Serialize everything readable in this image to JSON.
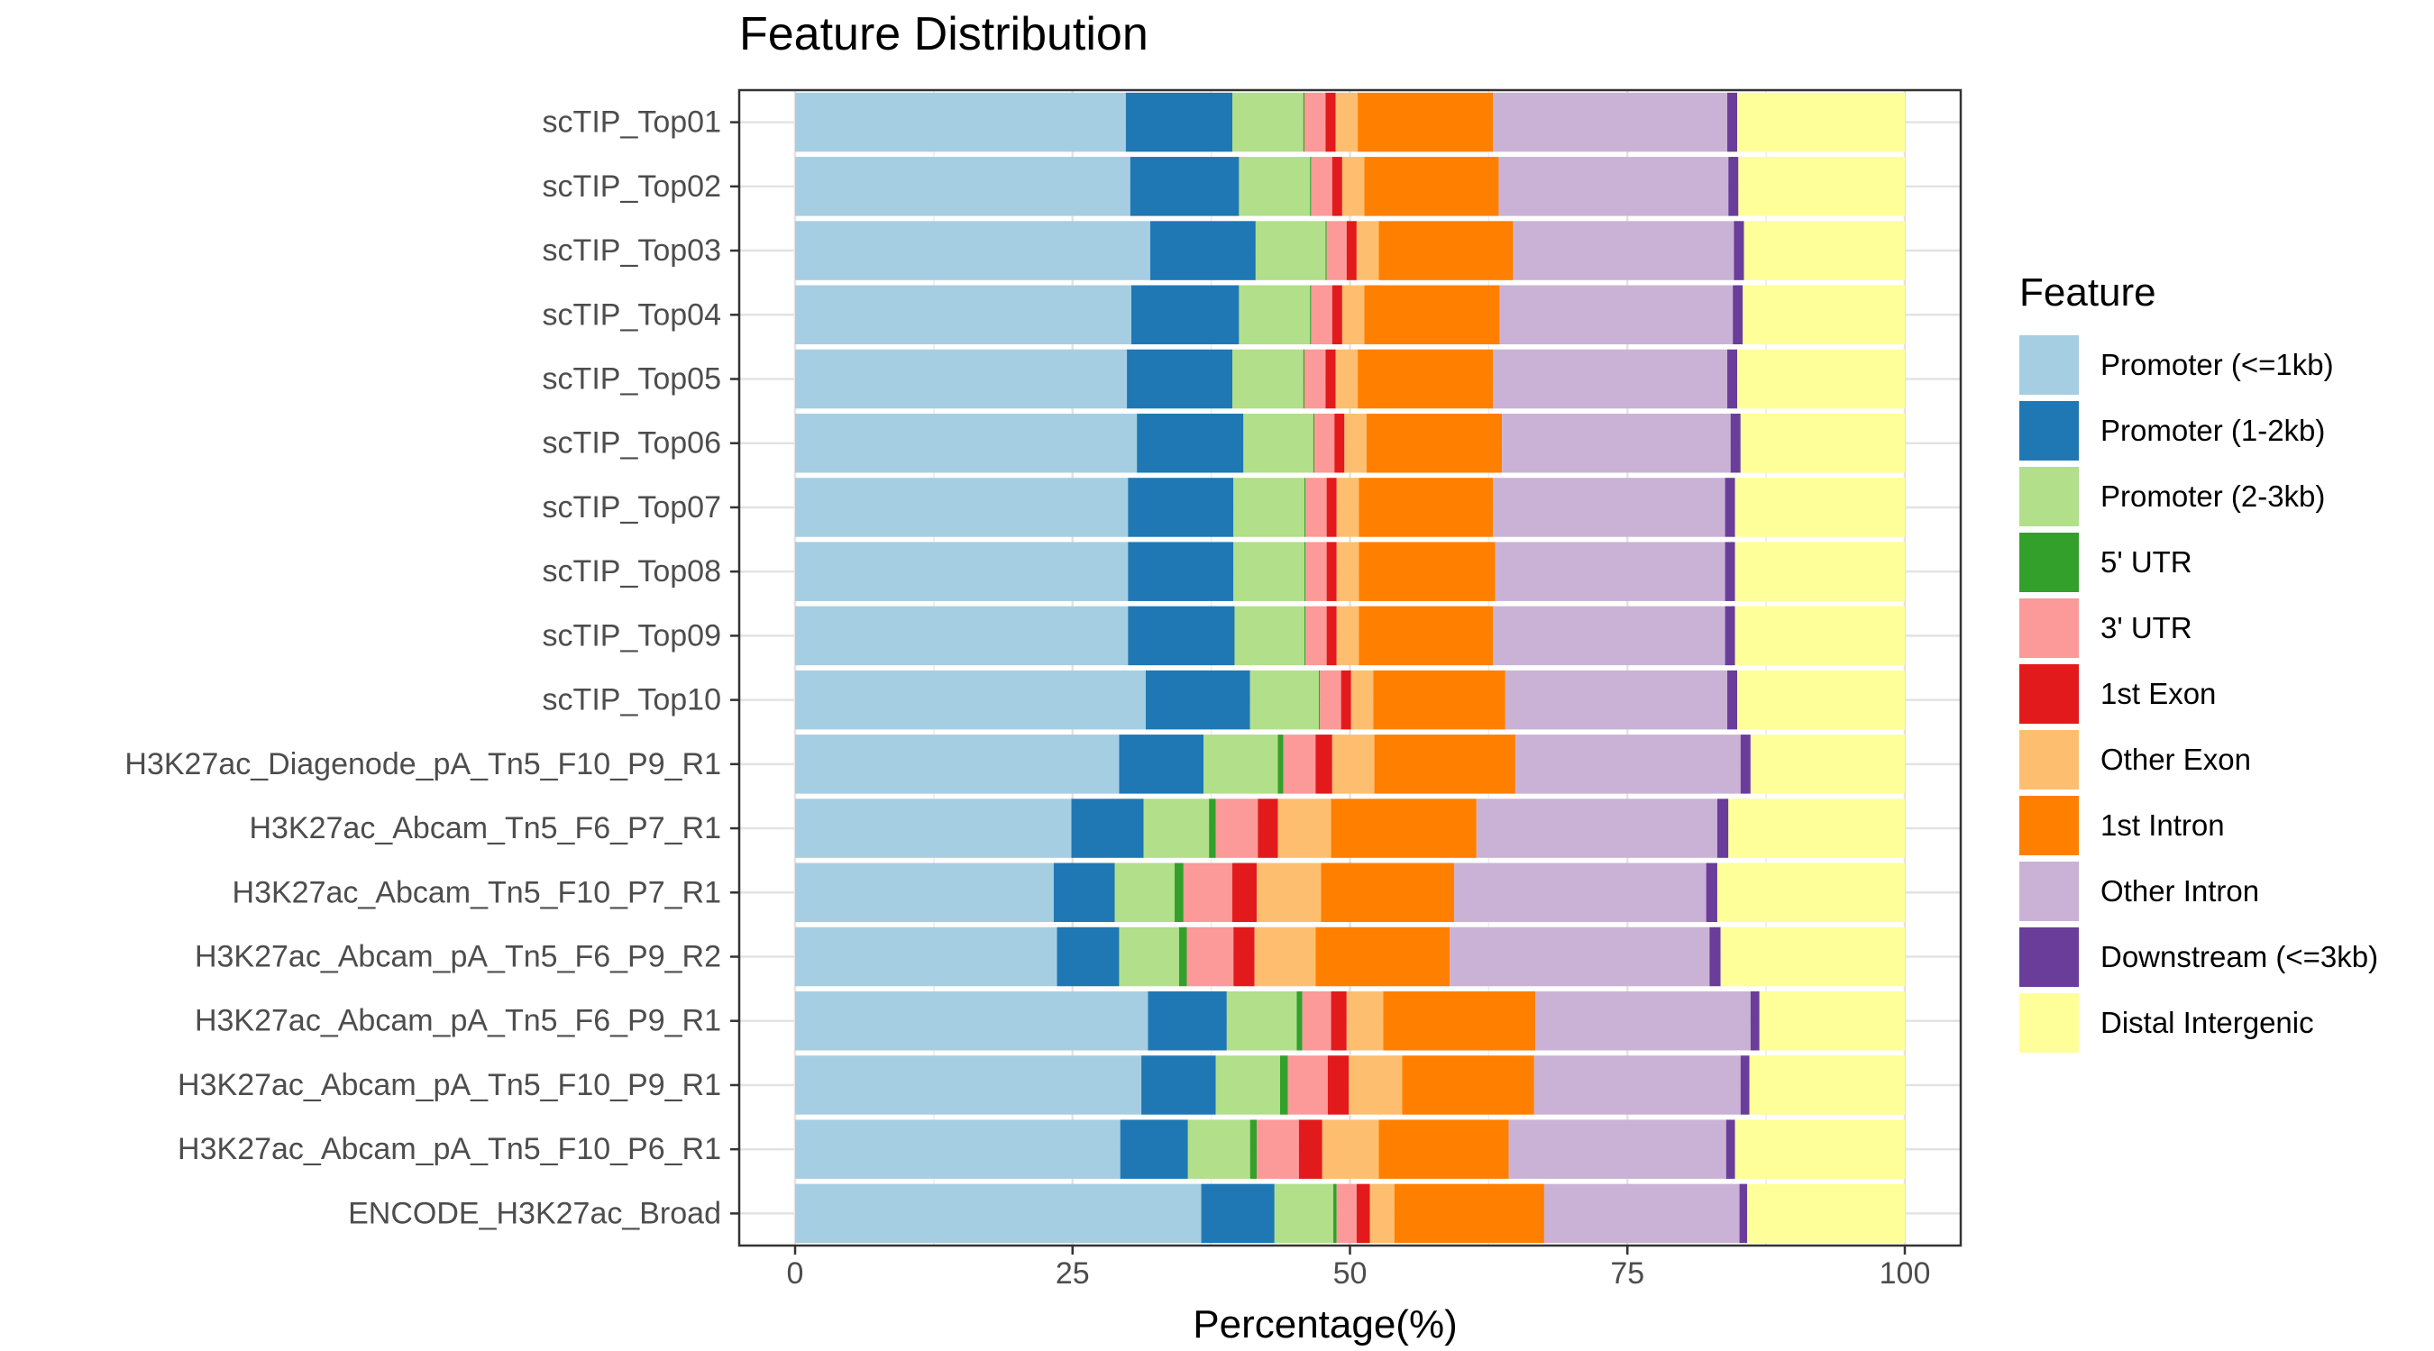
{
  "chart_data": {
    "type": "bar",
    "orientation": "horizontal",
    "stacked": true,
    "title": "Feature Distribution",
    "xlabel": "Percentage(%)",
    "ylabel": "",
    "xlim": [
      0,
      100
    ],
    "xticks": [
      0,
      25,
      50,
      75,
      100
    ],
    "grid": true,
    "legend_title": "Feature",
    "legend_position": "right",
    "categories": [
      "scTIP_Top01",
      "scTIP_Top02",
      "scTIP_Top03",
      "scTIP_Top04",
      "scTIP_Top05",
      "scTIP_Top06",
      "scTIP_Top07",
      "scTIP_Top08",
      "scTIP_Top09",
      "scTIP_Top10",
      "H3K27ac_Diagenode_pA_Tn5_F10_P9_R1",
      "H3K27ac_Abcam_Tn5_F6_P7_R1",
      "H3K27ac_Abcam_Tn5_F10_P7_R1",
      "H3K27ac_Abcam_pA_Tn5_F6_P9_R2",
      "H3K27ac_Abcam_pA_Tn5_F6_P9_R1",
      "H3K27ac_Abcam_pA_Tn5_F10_P9_R1",
      "H3K27ac_Abcam_pA_Tn5_F10_P6_R1",
      "ENCODE_H3K27ac_Broad"
    ],
    "series": [
      {
        "name": "Promoter (<=1kb)",
        "color": "#A6CEE3",
        "values": [
          29.8,
          30.2,
          32.0,
          30.3,
          29.9,
          30.8,
          30.0,
          30.0,
          30.0,
          31.6,
          29.2,
          24.9,
          23.3,
          23.6,
          31.8,
          31.2,
          29.3,
          36.6
        ]
      },
      {
        "name": "Promoter (1-2kb)",
        "color": "#1F78B4",
        "values": [
          9.6,
          9.8,
          9.5,
          9.7,
          9.5,
          9.6,
          9.5,
          9.5,
          9.6,
          9.4,
          7.6,
          6.5,
          5.5,
          5.6,
          7.1,
          6.7,
          6.1,
          6.6
        ]
      },
      {
        "name": "Promoter (2-3kb)",
        "color": "#B2DF8A",
        "values": [
          6.4,
          6.4,
          6.3,
          6.4,
          6.4,
          6.3,
          6.4,
          6.4,
          6.3,
          6.2,
          6.7,
          5.9,
          5.4,
          5.4,
          6.3,
          5.8,
          5.6,
          5.3
        ]
      },
      {
        "name": "5' UTR",
        "color": "#33A02C",
        "values": [
          0.1,
          0.1,
          0.1,
          0.1,
          0.1,
          0.1,
          0.1,
          0.1,
          0.1,
          0.1,
          0.5,
          0.6,
          0.8,
          0.7,
          0.5,
          0.7,
          0.6,
          0.3
        ]
      },
      {
        "name": "3' UTR",
        "color": "#FB9A99",
        "values": [
          1.9,
          1.9,
          1.8,
          1.9,
          1.9,
          1.8,
          1.9,
          1.9,
          1.9,
          1.9,
          2.9,
          3.8,
          4.4,
          4.2,
          2.6,
          3.6,
          3.8,
          1.8
        ]
      },
      {
        "name": "1st Exon",
        "color": "#E31A1C",
        "values": [
          0.9,
          0.9,
          0.9,
          0.9,
          0.9,
          0.9,
          0.9,
          0.9,
          0.9,
          0.9,
          1.5,
          1.8,
          2.2,
          1.9,
          1.4,
          1.9,
          2.1,
          1.2
        ]
      },
      {
        "name": "Other Exon",
        "color": "#FDBF6F",
        "values": [
          2.0,
          2.0,
          2.0,
          2.0,
          2.0,
          2.0,
          2.0,
          2.0,
          2.0,
          2.0,
          3.8,
          4.8,
          5.8,
          5.5,
          3.3,
          4.8,
          5.1,
          2.2
        ]
      },
      {
        "name": "1st Intron",
        "color": "#FF7F00",
        "values": [
          12.2,
          12.1,
          12.1,
          12.2,
          12.2,
          12.2,
          12.1,
          12.3,
          12.1,
          11.9,
          12.7,
          13.1,
          12.0,
          12.1,
          13.7,
          11.9,
          11.7,
          13.5
        ]
      },
      {
        "name": "Other Intron",
        "color": "#CAB2D6",
        "values": [
          21.1,
          20.7,
          19.9,
          21.0,
          21.1,
          20.6,
          20.9,
          20.7,
          20.9,
          20.0,
          20.3,
          21.7,
          22.7,
          23.4,
          19.4,
          18.6,
          19.6,
          17.6
        ]
      },
      {
        "name": "Downstream (<=3kb)",
        "color": "#6A3D9A",
        "values": [
          0.9,
          0.9,
          0.9,
          0.9,
          0.9,
          0.9,
          0.9,
          0.9,
          0.9,
          0.9,
          0.9,
          1.0,
          1.0,
          1.0,
          0.8,
          0.8,
          0.8,
          0.7
        ]
      },
      {
        "name": "Distal Intergenic",
        "color": "#FFFF99",
        "values": [
          15.1,
          15.0,
          14.5,
          14.6,
          15.1,
          14.8,
          15.3,
          15.3,
          15.3,
          15.1,
          13.9,
          15.9,
          16.9,
          16.6,
          13.1,
          14.0,
          15.3,
          14.2
        ]
      }
    ]
  }
}
